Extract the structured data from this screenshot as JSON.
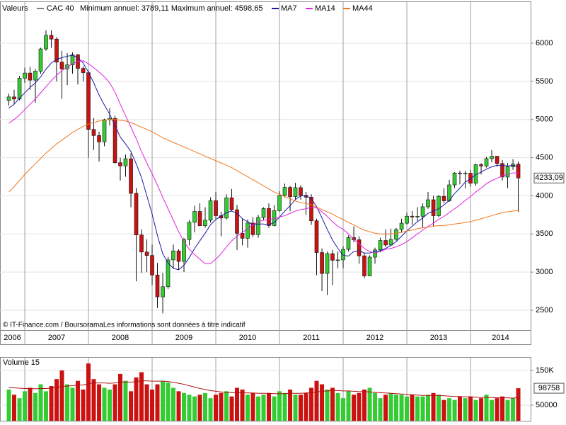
{
  "chart_data": {
    "type": "candlestick",
    "panel_label": "Valeurs",
    "title": "CAC 40",
    "subtitle": "Minimum annuel: 3789,11 Maximum annuel: 4598,65",
    "source": "© IT-Finance.com / BoursoramaLes informations sont données à titre indicatif",
    "x": [
      2006.75,
      2006.833,
      2006.917,
      2007,
      2007.083,
      2007.167,
      2007.25,
      2007.333,
      2007.417,
      2007.5,
      2007.583,
      2007.667,
      2007.75,
      2007.833,
      2007.917,
      2008,
      2008.083,
      2008.167,
      2008.25,
      2008.333,
      2008.417,
      2008.5,
      2008.583,
      2008.667,
      2008.75,
      2008.833,
      2008.917,
      2009,
      2009.083,
      2009.167,
      2009.25,
      2009.333,
      2009.417,
      2009.5,
      2009.583,
      2009.667,
      2009.75,
      2009.833,
      2009.917,
      2010,
      2010.083,
      2010.167,
      2010.25,
      2010.333,
      2010.417,
      2010.5,
      2010.583,
      2010.667,
      2010.75,
      2010.833,
      2010.917,
      2011,
      2011.083,
      2011.167,
      2011.25,
      2011.333,
      2011.417,
      2011.5,
      2011.583,
      2011.667,
      2011.75,
      2011.833,
      2011.917,
      2012,
      2012.083,
      2012.167,
      2012.25,
      2012.333,
      2012.417,
      2012.5,
      2012.583,
      2012.667,
      2012.75,
      2012.833,
      2012.917,
      2013,
      2013.083,
      2013.167,
      2013.25,
      2013.333,
      2013.417,
      2013.5,
      2013.583,
      2013.667,
      2013.75,
      2013.833,
      2013.917,
      2014,
      2014.083,
      2014.167,
      2014.25,
      2014.333,
      2014.417,
      2014.5,
      2014.583,
      2014.667,
      2014.75
    ],
    "xlim": [
      2006.611,
      2014.944
    ],
    "xticks": [
      2006,
      2007,
      2008,
      2009,
      2010,
      2011,
      2012,
      2013,
      2014
    ],
    "open": [
      5250,
      5296,
      5268,
      5541,
      5609,
      5516,
      5634,
      5925,
      6104,
      6054,
      5752,
      5663,
      5716,
      5848,
      5670,
      5614,
      4870,
      4790,
      4707,
      4997,
      5014,
      4434,
      4392,
      4485,
      4032,
      3487,
      3263,
      3218,
      2962,
      2675,
      2808,
      3160,
      3278,
      3140,
      3426,
      3653,
      3795,
      3608,
      3680,
      3936,
      3739,
      3708,
      3974,
      3817,
      3508,
      3443,
      3643,
      3490,
      3715,
      3833,
      3610,
      3805,
      4005,
      4110,
      3989,
      4107,
      4006,
      3982,
      3672,
      3256,
      2982,
      3242,
      3155,
      3160,
      3298,
      3452,
      3424,
      3213,
      2950,
      3196,
      3291,
      3414,
      3355,
      3429,
      3557,
      3641,
      3733,
      3723,
      3731,
      3856,
      3948,
      3739,
      3993,
      3934,
      4143,
      4299,
      4295,
      4296,
      4165,
      4408,
      4391,
      4487,
      4519,
      4423,
      4246,
      4381,
      4416
    ],
    "high": [
      5340,
      5390,
      5570,
      5680,
      5690,
      5660,
      5940,
      6170,
      6170,
      6080,
      5900,
      5870,
      5880,
      5860,
      5700,
      5640,
      5020,
      4840,
      5010,
      5150,
      5050,
      4500,
      4540,
      4560,
      4100,
      3560,
      3430,
      3360,
      3120,
      2990,
      3200,
      3360,
      3300,
      3450,
      3680,
      3870,
      3900,
      3850,
      3980,
      4050,
      3790,
      4020,
      4090,
      3880,
      3700,
      3690,
      3720,
      3750,
      3850,
      3900,
      3880,
      4060,
      4160,
      4130,
      4170,
      4140,
      4050,
      4020,
      3700,
      3310,
      3270,
      3290,
      3270,
      3340,
      3480,
      3600,
      3470,
      3250,
      3220,
      3320,
      3450,
      3560,
      3570,
      3580,
      3700,
      3780,
      3800,
      3850,
      3900,
      4050,
      4000,
      4010,
      4100,
      4210,
      4310,
      4330,
      4330,
      4340,
      4420,
      4430,
      4510,
      4598.65,
      4520,
      4470,
      4430,
      4480,
      4450
    ],
    "low": [
      5180,
      5200,
      5250,
      5480,
      5390,
      5220,
      5600,
      5900,
      5940,
      5500,
      5270,
      5450,
      5600,
      5460,
      5500,
      4500,
      4600,
      4450,
      4650,
      4920,
      4420,
      4200,
      4250,
      3850,
      2880,
      2990,
      3000,
      2830,
      2530,
      2460,
      2780,
      3050,
      3030,
      3000,
      3350,
      3520,
      3600,
      3580,
      3650,
      3700,
      3470,
      3690,
      3800,
      3290,
      3350,
      3320,
      3460,
      3450,
      3680,
      3580,
      3600,
      3790,
      3980,
      3800,
      3950,
      3950,
      3750,
      3620,
      2960,
      2750,
      2700,
      2830,
      3050,
      3050,
      3270,
      3390,
      3110,
      2920,
      2950,
      3110,
      3260,
      3330,
      3340,
      3410,
      3520,
      3620,
      3620,
      3670,
      3580,
      3830,
      3600,
      3720,
      3900,
      3920,
      4100,
      4150,
      4100,
      4120,
      4130,
      4280,
      4370,
      4440,
      4380,
      4200,
      4100,
      4340,
      3789.11
    ],
    "close": [
      5296,
      5268,
      5541,
      5609,
      5516,
      5634,
      5925,
      6104,
      6054,
      5752,
      5663,
      5716,
      5848,
      5670,
      5614,
      4870,
      4790,
      4707,
      4997,
      5014,
      4434,
      4392,
      4485,
      4032,
      3487,
      3263,
      3218,
      2962,
      2675,
      2808,
      3160,
      3278,
      3140,
      3426,
      3653,
      3795,
      3608,
      3680,
      3936,
      3739,
      3708,
      3974,
      3817,
      3508,
      3443,
      3643,
      3490,
      3715,
      3833,
      3610,
      3805,
      4005,
      4110,
      3989,
      4107,
      4006,
      3982,
      3672,
      3256,
      2982,
      3242,
      3155,
      3160,
      3298,
      3452,
      3424,
      3213,
      2950,
      3196,
      3291,
      3414,
      3355,
      3429,
      3557,
      3641,
      3733,
      3723,
      3731,
      3856,
      3948,
      3739,
      3993,
      3934,
      4143,
      4299,
      4295,
      4296,
      4165,
      4408,
      4391,
      4487,
      4519,
      4423,
      4246,
      4381,
      4416,
      4233.09
    ],
    "up_color": "#33cc33",
    "down_color": "#cc1111",
    "ylim": [
      2240,
      6492
    ],
    "yticks": [
      2500,
      3000,
      3500,
      4000,
      4500,
      5000,
      5500,
      6000
    ],
    "grid": true,
    "last_label": {
      "value": 4233.09,
      "label": "4233,09"
    },
    "series": [
      {
        "name": "MA7",
        "color": "#1a1aa6",
        "values": [
          5150,
          5200,
          5280,
          5350,
          5420,
          5480,
          5560,
          5660,
          5740,
          5790,
          5810,
          5830,
          5840,
          5810,
          5740,
          5620,
          5480,
          5320,
          5190,
          5070,
          4920,
          4770,
          4680,
          4580,
          4420,
          4240,
          4000,
          3760,
          3480,
          3240,
          3120,
          3050,
          3030,
          3090,
          3190,
          3310,
          3410,
          3510,
          3620,
          3690,
          3730,
          3780,
          3800,
          3770,
          3700,
          3660,
          3620,
          3630,
          3630,
          3620,
          3650,
          3720,
          3800,
          3870,
          3950,
          4000,
          4000,
          3960,
          3860,
          3710,
          3560,
          3420,
          3310,
          3220,
          3210,
          3270,
          3280,
          3250,
          3250,
          3270,
          3280,
          3310,
          3350,
          3400,
          3470,
          3540,
          3600,
          3660,
          3710,
          3770,
          3800,
          3830,
          3880,
          3940,
          4030,
          4100,
          4180,
          4220,
          4280,
          4310,
          4350,
          4380,
          4400,
          4400,
          4390,
          4400,
          4380
        ]
      },
      {
        "name": "MA14",
        "color": "#e020e0",
        "values": [
          4950,
          5000,
          5060,
          5130,
          5200,
          5270,
          5350,
          5430,
          5510,
          5580,
          5640,
          5690,
          5730,
          5760,
          5770,
          5730,
          5680,
          5620,
          5560,
          5480,
          5360,
          5200,
          5050,
          4900,
          4750,
          4580,
          4430,
          4290,
          4140,
          3980,
          3830,
          3680,
          3530,
          3400,
          3300,
          3230,
          3170,
          3110,
          3110,
          3170,
          3240,
          3330,
          3410,
          3470,
          3520,
          3570,
          3620,
          3660,
          3680,
          3690,
          3700,
          3720,
          3740,
          3770,
          3800,
          3820,
          3830,
          3850,
          3840,
          3790,
          3730,
          3660,
          3600,
          3560,
          3500,
          3430,
          3370,
          3310,
          3270,
          3250,
          3270,
          3300,
          3310,
          3330,
          3360,
          3400,
          3450,
          3500,
          3550,
          3600,
          3640,
          3690,
          3730,
          3780,
          3830,
          3880,
          3940,
          3990,
          4050,
          4100,
          4160,
          4200,
          4230,
          4260,
          4280,
          4300,
          4300
        ]
      },
      {
        "name": "MA44",
        "color": "#f07820",
        "values": [
          4050,
          4120,
          4200,
          4280,
          4350,
          4420,
          4490,
          4560,
          4620,
          4680,
          4730,
          4780,
          4830,
          4870,
          4910,
          4940,
          4960,
          4980,
          4990,
          5000,
          5000,
          4990,
          4980,
          4960,
          4930,
          4900,
          4870,
          4840,
          4800,
          4760,
          4730,
          4700,
          4670,
          4640,
          4610,
          4580,
          4550,
          4520,
          4490,
          4460,
          4430,
          4400,
          4370,
          4330,
          4290,
          4250,
          4210,
          4170,
          4130,
          4090,
          4050,
          4020,
          3990,
          3960,
          3930,
          3910,
          3900,
          3880,
          3850,
          3820,
          3790,
          3760,
          3720,
          3690,
          3650,
          3620,
          3580,
          3550,
          3530,
          3510,
          3500,
          3500,
          3500,
          3510,
          3520,
          3540,
          3550,
          3570,
          3580,
          3590,
          3600,
          3610,
          3610,
          3620,
          3630,
          3640,
          3650,
          3660,
          3680,
          3700,
          3720,
          3740,
          3760,
          3780,
          3790,
          3800,
          3810
        ]
      }
    ],
    "volume": {
      "title": "Volume 15",
      "values": [
        95000,
        80000,
        70000,
        90000,
        100000,
        85000,
        110000,
        90000,
        105000,
        125000,
        150000,
        110000,
        100000,
        120000,
        95000,
        170000,
        125000,
        110000,
        100000,
        95000,
        110000,
        140000,
        120000,
        90000,
        130000,
        145000,
        110000,
        95000,
        110000,
        120000,
        115000,
        100000,
        90000,
        85000,
        80000,
        75000,
        80000,
        85000,
        70000,
        80000,
        85000,
        90000,
        75000,
        100000,
        95000,
        80000,
        85000,
        75000,
        80000,
        85000,
        75000,
        90000,
        85000,
        95000,
        80000,
        80000,
        85000,
        100000,
        120000,
        110000,
        95000,
        100000,
        85000,
        70000,
        90000,
        80000,
        85000,
        95000,
        100000,
        85000,
        70000,
        80000,
        85000,
        80000,
        80000,
        75000,
        80000,
        75000,
        75000,
        80000,
        85000,
        80000,
        65000,
        70000,
        65000,
        75000,
        70000,
        75000,
        65000,
        70000,
        80000,
        65000,
        70000,
        75000,
        65000,
        70000,
        98758
      ],
      "average": [
        100000,
        100000,
        99000,
        98000,
        98000,
        97000,
        98000,
        98000,
        99000,
        101000,
        104000,
        105000,
        106000,
        108000,
        108000,
        112000,
        114000,
        114000,
        114000,
        113000,
        114000,
        116000,
        117000,
        116000,
        118000,
        120000,
        120000,
        119000,
        119000,
        119000,
        118000,
        116000,
        113000,
        110000,
        106000,
        102000,
        98000,
        95000,
        92000,
        90000,
        88000,
        87000,
        86000,
        86000,
        86000,
        85000,
        85000,
        84000,
        84000,
        84000,
        83000,
        83000,
        83000,
        84000,
        84000,
        84000,
        85000,
        86000,
        88000,
        90000,
        91000,
        92000,
        92000,
        91000,
        91000,
        90000,
        89000,
        89000,
        88000,
        87000,
        86000,
        85000,
        84000,
        83000,
        82000,
        81000,
        80000,
        79000,
        78000,
        78000,
        78000,
        78000,
        77000,
        76000,
        75000,
        75000,
        74000,
        74000,
        73000,
        72000,
        72000,
        72000,
        71000,
        71000,
        71000,
        70000,
        72000
      ],
      "average_color": "#b01010",
      "ylim": [
        5000,
        182600
      ],
      "yticks": [
        50000,
        {
          "value": 150000,
          "label": "150K"
        }
      ],
      "last_label": {
        "value": 98758,
        "label": "98758"
      }
    }
  }
}
